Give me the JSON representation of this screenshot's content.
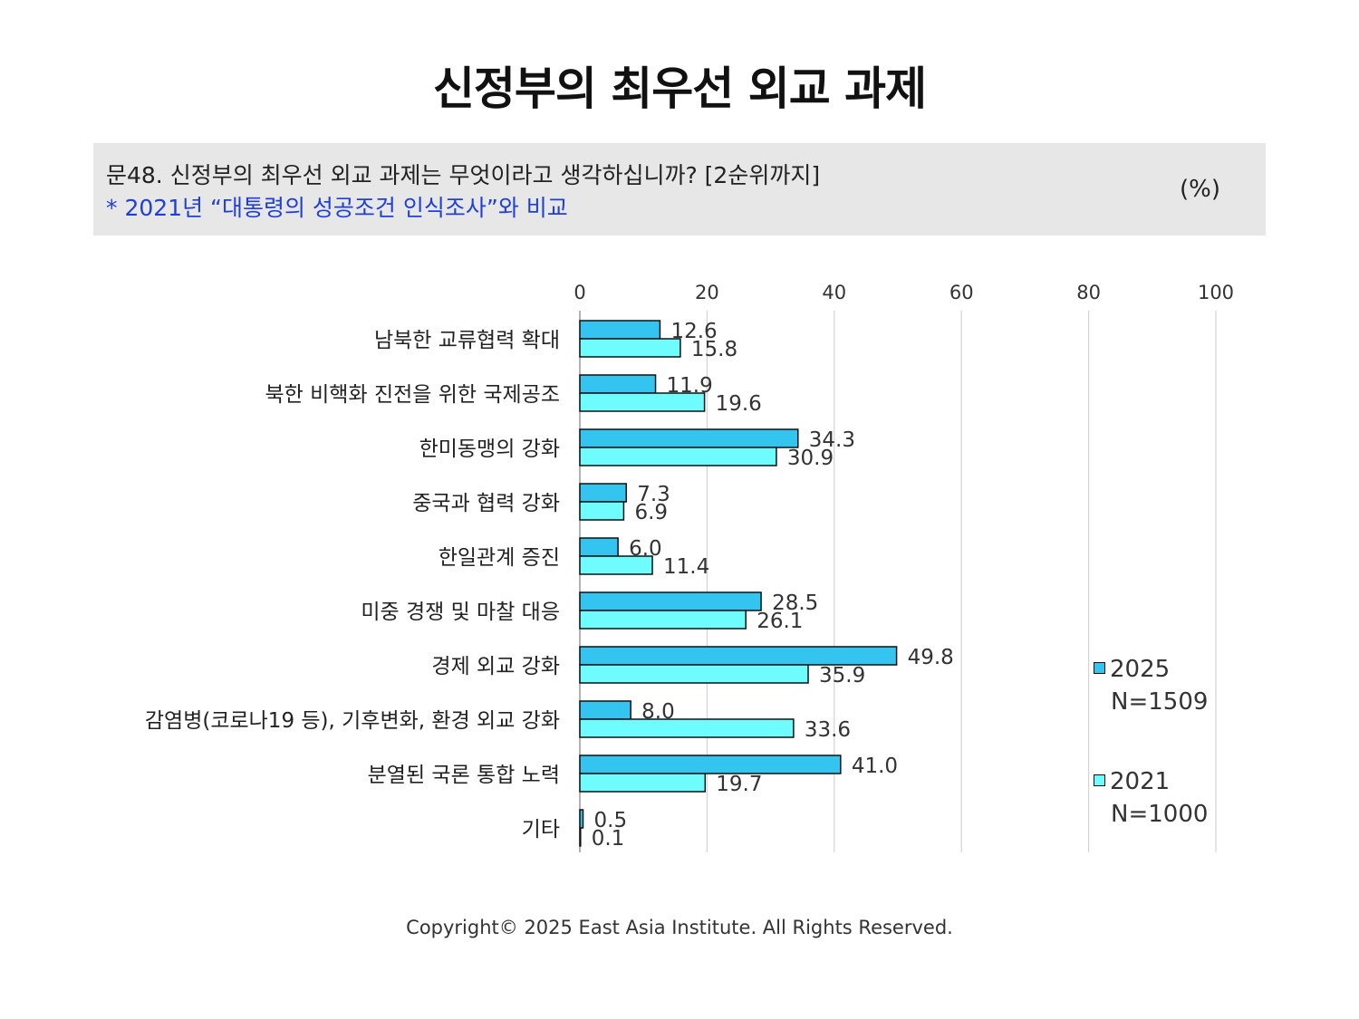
{
  "page": {
    "title": "신정부의 최우선 외교 과제",
    "question": "문48. 신정부의 최우선 외교 과제는 무엇이라고 생각하십니까? [2순위까지]",
    "note": "* 2021년 “대통령의 성공조건 인식조사”와 비교",
    "unit": "(%)",
    "copyright": "Copyright© 2025 East Asia Institute. All Rights Reserved."
  },
  "legend": [
    {
      "year": "2025",
      "n": "N=1509",
      "color": "#33c4f0"
    },
    {
      "year": "2021",
      "n": "N=1000",
      "color": "#6ffcff"
    }
  ],
  "chart_data": {
    "type": "bar",
    "orientation": "horizontal",
    "xlim": [
      0,
      100
    ],
    "ticks": [
      "0",
      "20",
      "40",
      "60",
      "80",
      "100"
    ],
    "tick_values": [
      0,
      20,
      40,
      60,
      80,
      100
    ],
    "grid": true,
    "legend_position": "right",
    "categories": [
      "남북한 교류협력 확대",
      "북한 비핵화 진전을 위한 국제공조",
      "한미동맹의 강화",
      "중국과 협력 강화",
      "한일관계 증진",
      "미중 경쟁 및 마찰 대응",
      "경제 외교 강화",
      "감염병(코로나19 등), 기후변화, 환경 외교 강화",
      "분열된 국론 통합 노력",
      "기타"
    ],
    "series": [
      {
        "name": "2025",
        "values": [
          12.6,
          11.9,
          34.3,
          7.3,
          6.0,
          28.5,
          49.8,
          8.0,
          41.0,
          0.5
        ],
        "labels": [
          "12.6",
          "11.9",
          "34.3",
          "7.3",
          "6.0",
          "28.5",
          "49.8",
          "8.0",
          "41.0",
          "0.5"
        ]
      },
      {
        "name": "2021",
        "values": [
          15.8,
          19.6,
          30.9,
          6.9,
          11.4,
          26.1,
          35.9,
          33.6,
          19.7,
          0.1
        ],
        "labels": [
          "15.8",
          "19.6",
          "30.9",
          "6.9",
          "11.4",
          "26.1",
          "35.9",
          "33.6",
          "19.7",
          "0.1"
        ]
      }
    ]
  }
}
